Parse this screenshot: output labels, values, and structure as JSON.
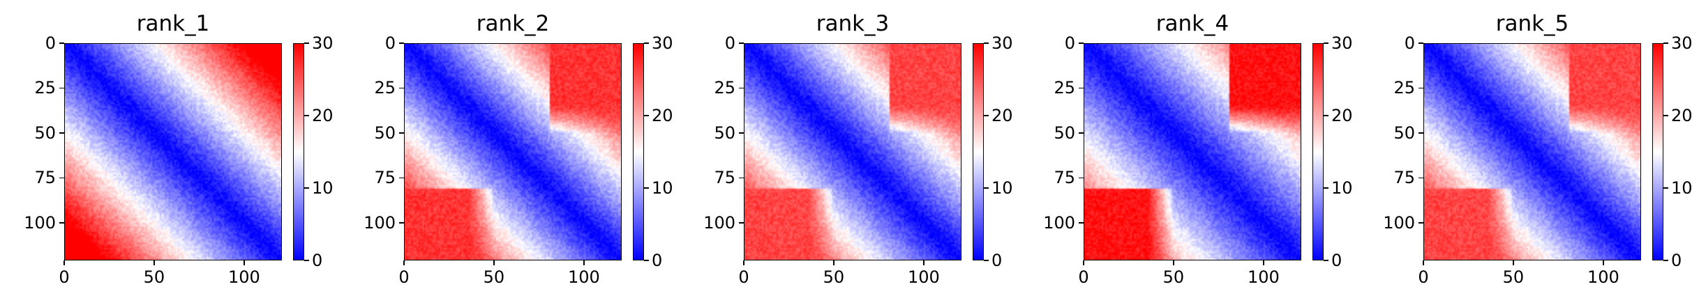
{
  "colormap": {
    "low": "#0000ff",
    "mid": "#ffffff",
    "high": "#ff0000"
  },
  "chart_data": [
    {
      "type": "heatmap",
      "title": "rank_1",
      "xlabel": "",
      "ylabel": "",
      "x_ticks": [
        0,
        50,
        100
      ],
      "y_ticks": [
        0,
        25,
        50,
        75,
        100
      ],
      "xlim": [
        0,
        121
      ],
      "ylim": [
        121,
        0
      ],
      "colorbar": {
        "min": 0,
        "max": 30,
        "ticks": [
          0,
          10,
          20,
          30
        ]
      },
      "matrix_size": 121,
      "interface_threshold": 0,
      "cross_value": 24,
      "diag_scale": 0.25,
      "max_value": 30
    },
    {
      "type": "heatmap",
      "title": "rank_2",
      "xlabel": "",
      "ylabel": "",
      "x_ticks": [
        0,
        50,
        100
      ],
      "y_ticks": [
        0,
        25,
        50,
        75,
        100
      ],
      "xlim": [
        0,
        121
      ],
      "ylim": [
        121,
        0
      ],
      "colorbar": {
        "min": 0,
        "max": 30,
        "ticks": [
          0,
          10,
          20,
          30
        ]
      },
      "matrix_size": 121,
      "interface_threshold": 80,
      "cross_value": 27,
      "diag_scale": 0.26,
      "max_value": 30
    },
    {
      "type": "heatmap",
      "title": "rank_3",
      "xlabel": "",
      "ylabel": "",
      "x_ticks": [
        0,
        50,
        100
      ],
      "y_ticks": [
        0,
        25,
        50,
        75,
        100
      ],
      "xlim": [
        0,
        121
      ],
      "ylim": [
        121,
        0
      ],
      "colorbar": {
        "min": 0,
        "max": 30,
        "ticks": [
          0,
          10,
          20,
          30
        ]
      },
      "matrix_size": 121,
      "interface_threshold": 80,
      "cross_value": 26,
      "diag_scale": 0.25,
      "max_value": 30
    },
    {
      "type": "heatmap",
      "title": "rank_4",
      "xlabel": "",
      "ylabel": "",
      "x_ticks": [
        0,
        50,
        100
      ],
      "y_ticks": [
        0,
        25,
        50,
        75,
        100
      ],
      "xlim": [
        0,
        121
      ],
      "ylim": [
        121,
        0
      ],
      "colorbar": {
        "min": 0,
        "max": 30,
        "ticks": [
          0,
          10,
          20,
          30
        ]
      },
      "matrix_size": 121,
      "interface_threshold": 80,
      "cross_value": 29,
      "diag_scale": 0.22,
      "max_value": 30
    },
    {
      "type": "heatmap",
      "title": "rank_5",
      "xlabel": "",
      "ylabel": "",
      "x_ticks": [
        0,
        50,
        100
      ],
      "y_ticks": [
        0,
        25,
        50,
        75,
        100
      ],
      "xlim": [
        0,
        121
      ],
      "ylim": [
        121,
        0
      ],
      "colorbar": {
        "min": 0,
        "max": 30,
        "ticks": [
          0,
          10,
          20,
          30
        ]
      },
      "matrix_size": 121,
      "interface_threshold": 80,
      "cross_value": 26,
      "diag_scale": 0.25,
      "max_value": 30
    }
  ]
}
